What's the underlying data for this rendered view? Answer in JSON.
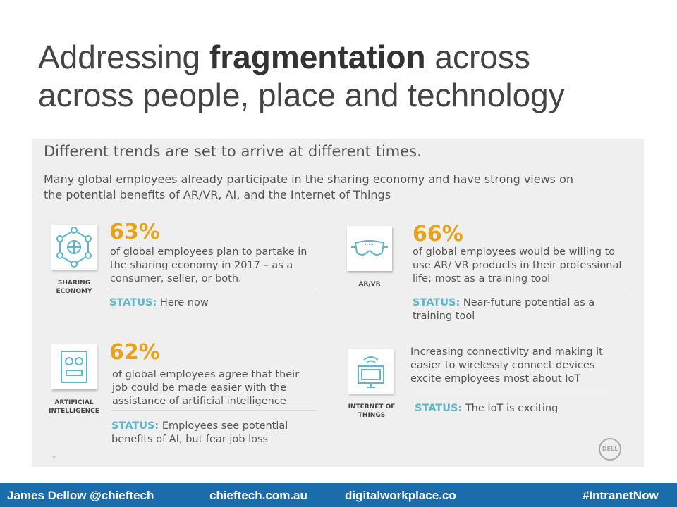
{
  "slide": {
    "title_part1": "Addressing ",
    "title_bold": "fragmentation",
    "title_part2": " across",
    "title_line2": "across people, place and technology"
  },
  "panel": {
    "heading": "Different trends are set to arrive at different times.",
    "subheading": "Many global employees already participate in the sharing economy and have strong views on the potential benefits of AR/VR, AI, and the Internet of Things",
    "page_number": "7",
    "logo_text": "DELL",
    "cards": [
      {
        "icon": "network-icon",
        "caption": "SHARING ECONOMY",
        "percent": "63%",
        "description": "of global employees plan to partake in the sharing economy in 2017 – as a consumer, seller, or both.",
        "status_label": "STATUS:",
        "status_text": " Here now"
      },
      {
        "icon": "vr-goggles-icon",
        "caption": "AR/VR",
        "percent": "66%",
        "description": "of global employees would be willing to use AR/ VR products in their professional life; most as a training tool",
        "status_label": "STATUS:",
        "status_text": " Near-future potential as a training tool"
      },
      {
        "icon": "robot-face-icon",
        "caption": "ARTIFICIAL INTELLIGENCE",
        "percent": "62%",
        "description": "of global employees agree that their job could be made easier with the assistance of artificial intelligence",
        "status_label": "STATUS:",
        "status_text": " Employees see potential benefits of AI, but fear job loss"
      },
      {
        "icon": "wifi-monitor-icon",
        "caption": "INTERNET OF THINGS",
        "percent": "",
        "description": "Increasing connectivity and making it easier to wirelessly connect devices excite employees most about IoT",
        "status_label": "STATUS:",
        "status_text": " The IoT is exciting"
      }
    ]
  },
  "footer": {
    "author": "James Dellow @chieftech",
    "site1": "chieftech.com.au",
    "site2": "digitalworkplace.co",
    "hashtag": "#IntranetNow"
  },
  "colors": {
    "accent_percent": "#e6a21a",
    "status_label": "#5bb7c9",
    "icon_teal": "#5bb7c9",
    "footer_bg": "#1a6daa"
  }
}
